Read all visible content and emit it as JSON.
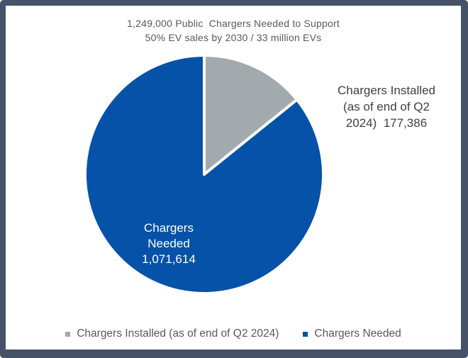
{
  "title": {
    "line1": "1,249,000 Public  Chargers Needed to Support",
    "line2": "50% EV sales by 2030 / 33 million EVs"
  },
  "chart_data": {
    "type": "pie",
    "title": "1,249,000 Public Chargers Needed to Support 50% EV sales by 2030 / 33 million EVs",
    "start_angle_deg": 0,
    "direction": "clockwise",
    "legend_position": "bottom",
    "total": 1249000,
    "slices": [
      {
        "label": "Chargers Installed (as of end of Q2 2024)",
        "value": 177386,
        "display_value": "177,386",
        "color": "#a2aaae"
      },
      {
        "label": "Chargers Needed",
        "value": 1071614,
        "display_value": "1,071,614",
        "color": "#0552a8"
      }
    ]
  },
  "callouts": {
    "installed": {
      "lines": [
        "Chargers Installed",
        "(as of end of Q2",
        "2024)  177,386"
      ]
    },
    "needed": {
      "lines": [
        "Chargers",
        "Needed",
        "1,071,614"
      ]
    }
  },
  "legend": {
    "items": [
      {
        "label": "Chargers Installed (as of end of Q2 2024)",
        "color": "#a2aaae"
      },
      {
        "label": "Chargers Needed",
        "color": "#0552a8"
      }
    ]
  },
  "colors": {
    "frame_border": "#465268",
    "background": "#ffffff",
    "title_text": "#595959",
    "callout_text": "#404040",
    "slice_separator": "#ffffff"
  }
}
